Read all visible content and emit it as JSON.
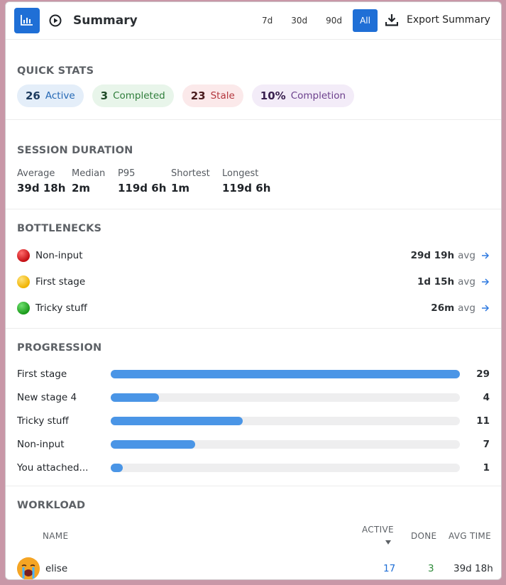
{
  "header": {
    "title": "Summary",
    "ranges": [
      "7d",
      "30d",
      "90d",
      "All"
    ],
    "active_range": "All",
    "export_label": "Export Summary"
  },
  "quick_stats": {
    "title": "QUICK STATS",
    "active": {
      "num": "26",
      "label": "Active"
    },
    "completed": {
      "num": "3",
      "label": "Completed"
    },
    "stale": {
      "num": "23",
      "label": "Stale"
    },
    "completion": {
      "num": "10%",
      "label": "Completion"
    }
  },
  "session_duration": {
    "title": "SESSION DURATION",
    "stats": [
      {
        "label": "Average",
        "value": "39d 18h"
      },
      {
        "label": "Median",
        "value": "2m"
      },
      {
        "label": "P95",
        "value": "119d 6h"
      },
      {
        "label": "Shortest",
        "value": "1m"
      },
      {
        "label": "Longest",
        "value": "119d 6h"
      }
    ]
  },
  "bottlenecks": {
    "title": "BOTTLENECKS",
    "avg_suffix": "avg",
    "items": [
      {
        "label": "Non-input",
        "value": "29d 19h",
        "color": "#d62828"
      },
      {
        "label": "First stage",
        "value": "1d 15h",
        "color": "#f5c518"
      },
      {
        "label": "Tricky stuff",
        "value": "26m",
        "color": "#1e9e1e"
      }
    ]
  },
  "progression": {
    "title": "PROGRESSION",
    "items": [
      {
        "label": "First stage",
        "count": "29",
        "fraction": 1.0
      },
      {
        "label": "New stage 4",
        "count": "4",
        "fraction": 0.138
      },
      {
        "label": "Tricky stuff",
        "count": "11",
        "fraction": 0.379
      },
      {
        "label": "Non-input",
        "count": "7",
        "fraction": 0.241
      },
      {
        "label": "You attached...",
        "count": "1",
        "fraction": 0.034
      }
    ]
  },
  "workload": {
    "title": "WORKLOAD",
    "columns": {
      "name": "NAME",
      "active": "ACTIVE",
      "done": "DONE",
      "avg": "AVG TIME"
    },
    "rows": [
      {
        "name": "elise",
        "active": "17",
        "done": "3",
        "avg": "39d 18h",
        "avatar": "crying-face"
      }
    ]
  },
  "colors": {
    "accent": "#1f6fd6",
    "bar": "#4a95e6"
  }
}
